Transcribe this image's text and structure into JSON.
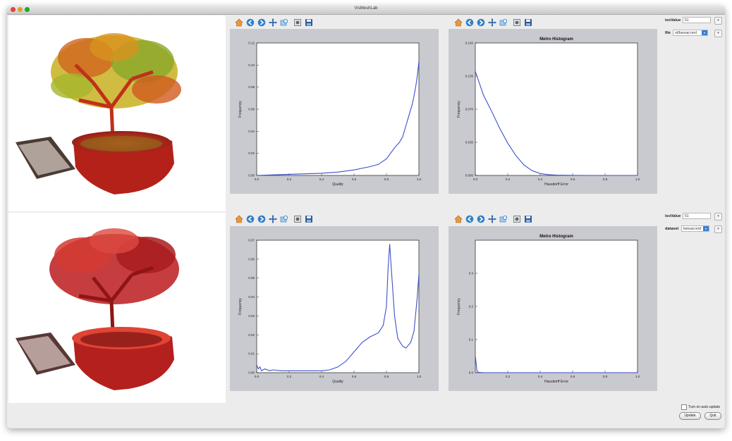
{
  "window": {
    "title": "VisMeshLab"
  },
  "icons": {
    "toolbar": [
      "home-icon",
      "back-icon",
      "forward-icon",
      "pan-icon",
      "zoom-icon",
      "configure-icon",
      "save-icon"
    ]
  },
  "colors": {
    "line": "#3c50c8",
    "plot_bg": "#c9c9d0",
    "tree_top": "#c02a18",
    "tree_bottom": "#b3201e"
  },
  "controls_top": {
    "iso_label": "isoValue",
    "iso_value": "51",
    "file_label": "file",
    "file_value": "rd/bonsai.nrrd"
  },
  "controls_bottom": {
    "iso_label": "isoValue",
    "iso_value": "51",
    "dataset_label": "dataset",
    "dataset_value": "bonsai.nrrd"
  },
  "footer": {
    "auto_update_label": "Turn on auto-update",
    "update_label": "Update",
    "quit_label": "Quit"
  },
  "chart_data": [
    {
      "type": "line",
      "title": "",
      "xlabel": "Quality",
      "ylabel": "Frequency",
      "xlim": [
        0,
        1
      ],
      "ylim": [
        0,
        0.12
      ],
      "xticks": [
        "0.0",
        "0.2",
        "0.4",
        "0.6",
        "0.8",
        "1.0"
      ],
      "yticks": [
        "0.00",
        "0.02",
        "0.04",
        "0.06",
        "0.08",
        "0.10",
        "0.12"
      ],
      "x": [
        0.0,
        0.1,
        0.2,
        0.3,
        0.4,
        0.5,
        0.6,
        0.7,
        0.75,
        0.8,
        0.85,
        0.88,
        0.9,
        0.92,
        0.94,
        0.96,
        0.97,
        0.98,
        0.99,
        1.0
      ],
      "y": [
        0.0,
        0.0005,
        0.001,
        0.0015,
        0.002,
        0.003,
        0.005,
        0.008,
        0.01,
        0.015,
        0.025,
        0.03,
        0.035,
        0.045,
        0.055,
        0.065,
        0.072,
        0.08,
        0.09,
        0.103
      ]
    },
    {
      "type": "line",
      "title": "Metro Histogram",
      "xlabel": "Hausdorff Error",
      "ylabel": "Frequency",
      "xlim": [
        0,
        1
      ],
      "ylim": [
        0,
        0.14
      ],
      "xticks": [
        "0.0",
        "0.2",
        "0.4",
        "0.6",
        "0.8",
        "1.0"
      ],
      "yticks": [
        "0.000",
        "0.035",
        "0.070",
        "0.105",
        "0.140"
      ],
      "x": [
        0.0,
        0.02,
        0.05,
        0.1,
        0.15,
        0.2,
        0.25,
        0.3,
        0.35,
        0.4,
        0.45,
        0.5,
        0.6,
        0.7,
        1.0
      ],
      "y": [
        0.11,
        0.1,
        0.085,
        0.068,
        0.05,
        0.034,
        0.021,
        0.011,
        0.005,
        0.002,
        0.0008,
        0.0003,
        0.0001,
        0.0,
        0.0
      ]
    },
    {
      "type": "line",
      "title": "",
      "xlabel": "Quality",
      "ylabel": "Frequency",
      "xlim": [
        0,
        1
      ],
      "ylim": [
        0,
        0.07
      ],
      "xticks": [
        "0.0",
        "0.2",
        "0.4",
        "0.6",
        "0.8",
        "1.0"
      ],
      "yticks": [
        "0.00",
        "0.01",
        "0.02",
        "0.03",
        "0.04",
        "0.05",
        "0.06",
        "0.07"
      ],
      "x": [
        0.0,
        0.01,
        0.02,
        0.03,
        0.05,
        0.08,
        0.1,
        0.15,
        0.2,
        0.3,
        0.4,
        0.45,
        0.5,
        0.55,
        0.6,
        0.65,
        0.7,
        0.75,
        0.78,
        0.8,
        0.81,
        0.82,
        0.83,
        0.85,
        0.87,
        0.9,
        0.92,
        0.95,
        0.97,
        0.99,
        1.0
      ],
      "y": [
        0.004,
        0.002,
        0.003,
        0.001,
        0.002,
        0.001,
        0.0015,
        0.001,
        0.001,
        0.001,
        0.001,
        0.0015,
        0.003,
        0.006,
        0.011,
        0.016,
        0.019,
        0.021,
        0.025,
        0.035,
        0.055,
        0.068,
        0.055,
        0.03,
        0.018,
        0.014,
        0.013,
        0.016,
        0.022,
        0.04,
        0.052
      ]
    },
    {
      "type": "line",
      "title": "Metro Histogram",
      "xlabel": "Hausdorff Error",
      "ylabel": "Frequency",
      "xlim": [
        0,
        1
      ],
      "ylim": [
        0,
        0.4
      ],
      "xticks": [
        "0.2",
        "0.4",
        "0.6",
        "0.8",
        "1.0"
      ],
      "yticks": [
        "0.0",
        "0.1",
        "0.2",
        "0.3"
      ],
      "x": [
        0.0,
        0.005,
        0.01,
        0.02,
        0.05,
        0.1,
        0.5,
        1.0
      ],
      "y": [
        0.05,
        0.03,
        0.005,
        0.001,
        0.0,
        0.0,
        0.0,
        0.0
      ]
    }
  ]
}
